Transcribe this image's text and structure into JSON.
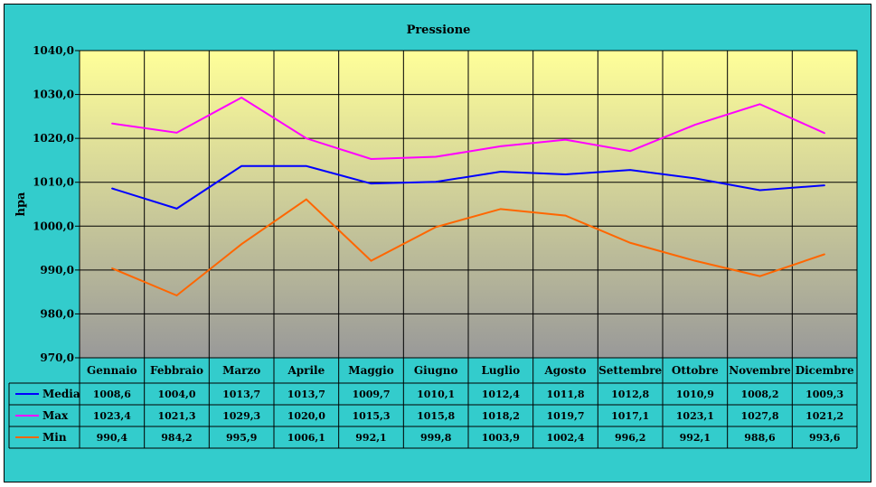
{
  "chart_data": {
    "type": "line",
    "title": "Pressione",
    "ylabel": "hpa",
    "xlabel": "",
    "ylim": [
      970,
      1040
    ],
    "y_ticks": [
      "970,0",
      "980,0",
      "990,0",
      "1000,0",
      "1010,0",
      "1020,0",
      "1030,0",
      "1040,0"
    ],
    "categories": [
      "Gennaio",
      "Febbraio",
      "Marzo",
      "Aprile",
      "Maggio",
      "Giugno",
      "Luglio",
      "Agosto",
      "Settembre",
      "Ottobre",
      "Novembre",
      "Dicembre"
    ],
    "grid": true,
    "legend": "data-table",
    "series": [
      {
        "name": "Media",
        "color": "#0000ff",
        "values": [
          1008.6,
          1004.0,
          1013.7,
          1013.7,
          1009.7,
          1010.1,
          1012.4,
          1011.8,
          1012.8,
          1010.9,
          1008.2,
          1009.3
        ],
        "labels": [
          "1008,6",
          "1004,0",
          "1013,7",
          "1013,7",
          "1009,7",
          "1010,1",
          "1012,4",
          "1011,8",
          "1012,8",
          "1010,9",
          "1008,2",
          "1009,3"
        ]
      },
      {
        "name": "Max",
        "color": "#ff00ff",
        "values": [
          1023.4,
          1021.3,
          1029.3,
          1020.0,
          1015.3,
          1015.8,
          1018.2,
          1019.7,
          1017.1,
          1023.1,
          1027.8,
          1021.2
        ],
        "labels": [
          "1023,4",
          "1021,3",
          "1029,3",
          "1020,0",
          "1015,3",
          "1015,8",
          "1018,2",
          "1019,7",
          "1017,1",
          "1023,1",
          "1027,8",
          "1021,2"
        ]
      },
      {
        "name": "Min",
        "color": "#ff6600",
        "values": [
          990.4,
          984.2,
          995.9,
          1006.1,
          992.1,
          999.8,
          1003.9,
          1002.4,
          996.2,
          992.1,
          988.6,
          993.6
        ],
        "labels": [
          "990,4",
          "984,2",
          "995,9",
          "1006,1",
          "992,1",
          "999,8",
          "1003,9",
          "1002,4",
          "996,2",
          "992,1",
          "988,6",
          "993,6"
        ]
      }
    ]
  }
}
